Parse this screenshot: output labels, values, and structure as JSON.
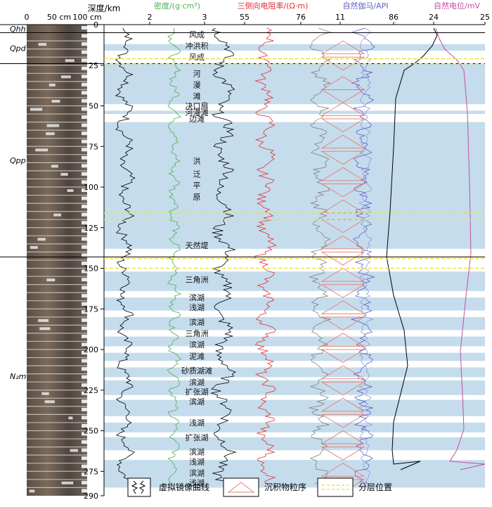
{
  "chart_data": {
    "type": "line",
    "title": "",
    "core_scale": {
      "label_0": "0",
      "label_50": "50 cm",
      "label_100": "100 cm"
    },
    "depth_axis": {
      "label": "深度/km",
      "min": 0,
      "max": 290,
      "ticks": [
        "0",
        "25",
        "50",
        "75",
        "100",
        "125",
        "150",
        "175",
        "200",
        "225",
        "250",
        "275",
        "290"
      ]
    },
    "tracks": [
      {
        "name": "密度/(g·cm³)",
        "min": 2,
        "max": 3,
        "tick_labels": [
          "2",
          "3"
        ],
        "color": "#4caf50"
      },
      {
        "name": "三侧向电阻率/(Ω·m)",
        "min": 55,
        "max": 76,
        "tick_labels": [
          "55",
          "76"
        ],
        "color": "#e03030"
      },
      {
        "name": "自然伽马/API",
        "min": 11,
        "max": 86,
        "tick_labels": [
          "11",
          "86"
        ],
        "color": "#6060c0"
      },
      {
        "name": "自然电位/mV",
        "min": 24,
        "max": 25,
        "tick_labels": [
          "24",
          "25"
        ],
        "color": "#c050a0"
      }
    ],
    "formations": [
      {
        "name": "Qhh",
        "top": 0,
        "bottom": 5
      },
      {
        "name": "Qpd",
        "top": 5,
        "bottom": 24
      },
      {
        "name": "Qpp",
        "top": 24,
        "bottom": 143
      },
      {
        "name": "N₂m",
        "top": 143,
        "bottom": 290
      }
    ],
    "facies_labels": [
      {
        "text": "风成",
        "depth": 6
      },
      {
        "text": "冲洪积",
        "depth": 13
      },
      {
        "text": "风成",
        "depth": 20
      },
      {
        "text": "河",
        "depth": 30
      },
      {
        "text": "漫",
        "depth": 37
      },
      {
        "text": "滩",
        "depth": 44
      },
      {
        "text": "决口扇",
        "depth": 50
      },
      {
        "text": "河漫滩",
        "depth": 54
      },
      {
        "text": "边滩",
        "depth": 58
      },
      {
        "text": "洪",
        "depth": 84
      },
      {
        "text": "泛",
        "depth": 92
      },
      {
        "text": "平",
        "depth": 99
      },
      {
        "text": "原",
        "depth": 106
      },
      {
        "text": "天然堤",
        "depth": 136
      },
      {
        "text": "三角洲",
        "depth": 157
      },
      {
        "text": "滨湖",
        "depth": 168
      },
      {
        "text": "浅湖",
        "depth": 174
      },
      {
        "text": "滨湖",
        "depth": 183
      },
      {
        "text": "三角洲",
        "depth": 190
      },
      {
        "text": "滨湖",
        "depth": 197
      },
      {
        "text": "泥滩",
        "depth": 204
      },
      {
        "text": "砂质湖滩",
        "depth": 213
      },
      {
        "text": "滨湖",
        "depth": 220
      },
      {
        "text": "扩张湖",
        "depth": 226
      },
      {
        "text": "滨湖",
        "depth": 232
      },
      {
        "text": "浅湖",
        "depth": 245
      },
      {
        "text": "扩张湖",
        "depth": 254
      },
      {
        "text": "滨湖",
        "depth": 263
      },
      {
        "text": "浅湖",
        "depth": 269
      },
      {
        "text": "滨湖",
        "depth": 276
      },
      {
        "text": "浅湖",
        "depth": 282
      }
    ],
    "blue_bands": [
      [
        12,
        16
      ],
      [
        24,
        49
      ],
      [
        53,
        55
      ],
      [
        60,
        138
      ],
      [
        152,
        164
      ],
      [
        168,
        176
      ],
      [
        180,
        188
      ],
      [
        192,
        198
      ],
      [
        202,
        207
      ],
      [
        211,
        217
      ],
      [
        219,
        228
      ],
      [
        231,
        241
      ],
      [
        245,
        251
      ],
      [
        254,
        262
      ],
      [
        268,
        285
      ]
    ],
    "layer_boundaries_yellow": [
      21,
      24,
      116,
      120,
      144,
      150
    ],
    "legend": [
      "虚拟镜像曲线",
      "沉积物粒序",
      "分层位置"
    ],
    "colors": {
      "band": "#c5dcec",
      "boundary": "#f0e040",
      "mirror": "#000000",
      "sequence": "#e38070"
    }
  }
}
